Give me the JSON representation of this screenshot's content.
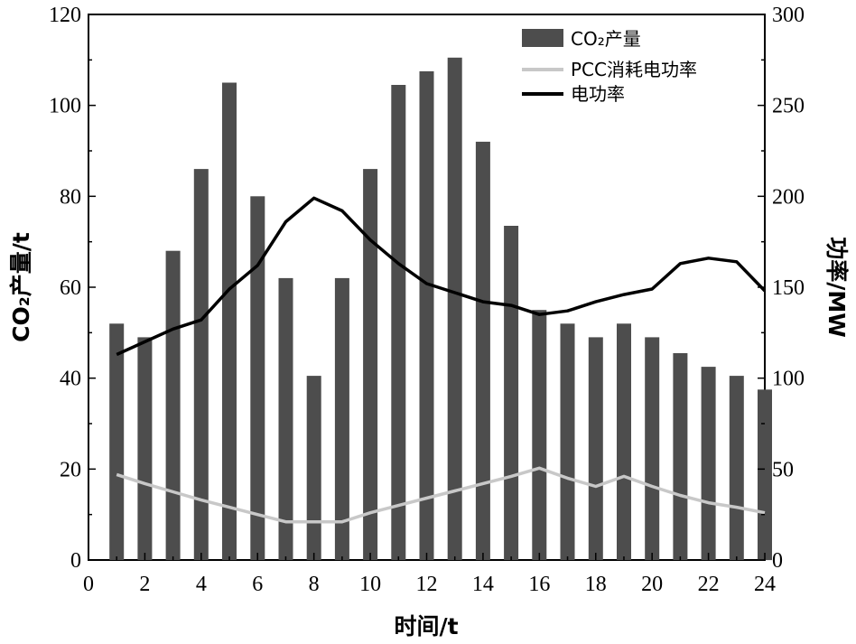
{
  "chart_data": {
    "type": "bar",
    "xlabel": "时间/t",
    "ylabel_left": "CO₂产量/t",
    "ylabel_right": "功率/MW",
    "xlim": [
      0,
      24
    ],
    "ylim_left": [
      0,
      120
    ],
    "ylim_right": [
      0,
      300
    ],
    "x_ticks": [
      0,
      2,
      4,
      6,
      8,
      10,
      12,
      14,
      16,
      18,
      20,
      22,
      24
    ],
    "y_ticks_left": [
      0,
      20,
      40,
      60,
      80,
      100,
      120
    ],
    "y_ticks_right": [
      0,
      50,
      100,
      150,
      200,
      250,
      300
    ],
    "grid": false,
    "legend_position": "top-right",
    "x": [
      1,
      2,
      3,
      4,
      5,
      6,
      7,
      8,
      9,
      10,
      11,
      12,
      13,
      14,
      15,
      16,
      17,
      18,
      19,
      20,
      21,
      22,
      23,
      24
    ],
    "series": [
      {
        "name": "CO₂产量",
        "kind": "bar",
        "axis": "left",
        "color": "#4d4d4d",
        "values": [
          52,
          49,
          68,
          86,
          105,
          80,
          62,
          40.5,
          62,
          86,
          104.5,
          107.5,
          110.5,
          92,
          73.5,
          55,
          52,
          49,
          52,
          49,
          45.5,
          42.5,
          40.5,
          37.5
        ]
      },
      {
        "name": "PCC消耗电功率",
        "kind": "line",
        "axis": "right",
        "color": "#c8c8c8",
        "values": [
          47,
          42,
          37.5,
          33,
          29,
          25,
          21,
          21,
          21,
          26,
          30,
          34,
          38,
          42,
          46,
          50.5,
          45,
          40.5,
          46,
          40.5,
          35.5,
          31.5,
          29,
          26
        ]
      },
      {
        "name": "电功率",
        "kind": "line",
        "axis": "right",
        "color": "#000000",
        "values": [
          113,
          120,
          127,
          132,
          149,
          162,
          186,
          199,
          192,
          176,
          163,
          152,
          147,
          142,
          140,
          135,
          137,
          142,
          146,
          149,
          163,
          166,
          164,
          148
        ]
      }
    ]
  }
}
